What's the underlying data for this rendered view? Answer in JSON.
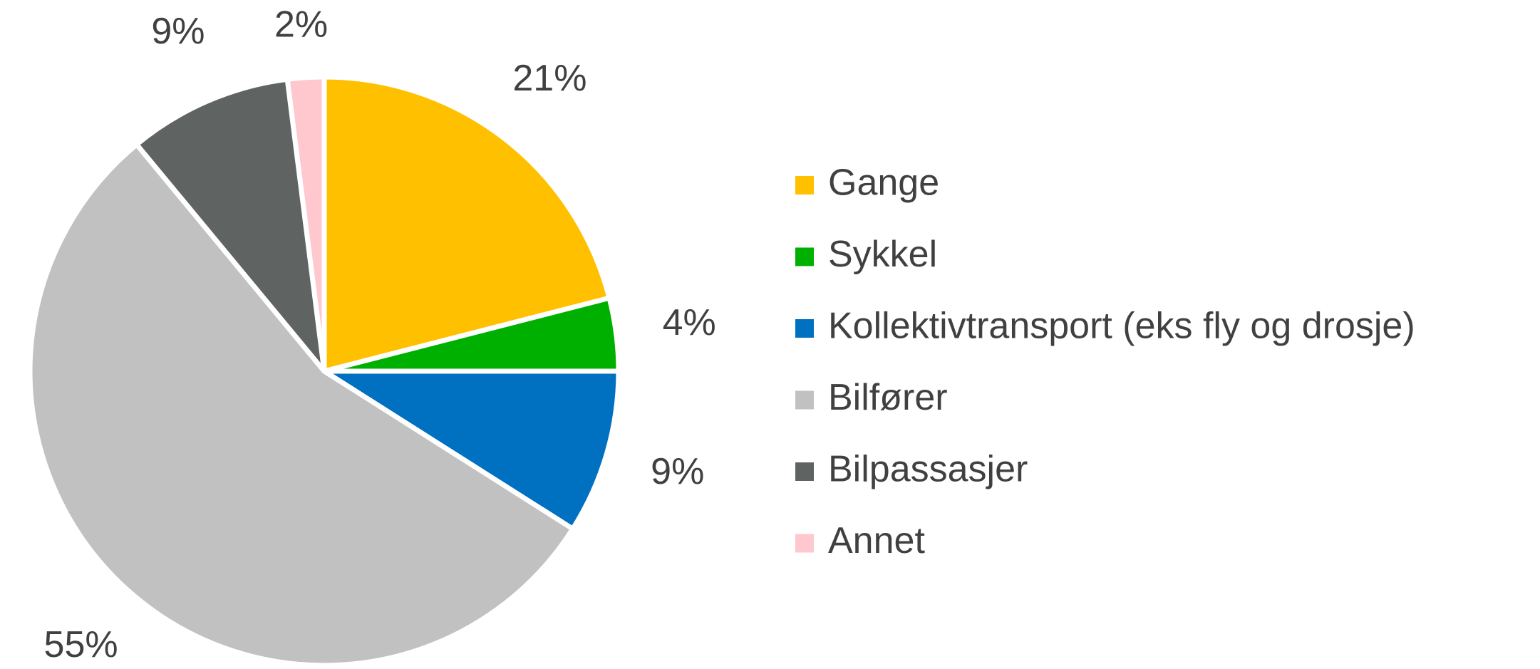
{
  "chart_data": {
    "type": "pie",
    "categories": [
      "Gange",
      "Sykkel",
      "Kollektivtransport (eks fly og drosje)",
      "Bilfører",
      "Bilpassasjer",
      "Annet"
    ],
    "values": [
      21,
      4,
      9,
      55,
      9,
      2
    ],
    "value_labels": [
      "21%",
      "4%",
      "9%",
      "55%",
      "9%",
      "2%"
    ],
    "colors": [
      "#FFC000",
      "#00B000",
      "#0070C0",
      "#C0C1C0",
      "#5F6361",
      "#FFC7CE"
    ],
    "legend": "right"
  }
}
